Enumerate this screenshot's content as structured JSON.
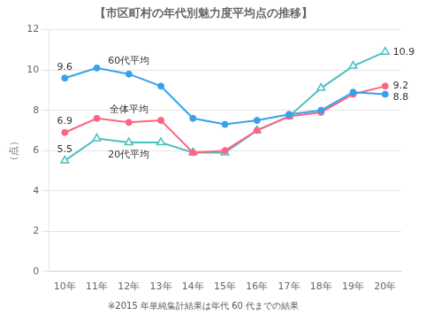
{
  "chart_data": {
    "type": "line",
    "title": "【市区町村の年代別魅力度平均点の推移】",
    "footnote": "※2015 年単純集計結果は年代 60 代までの結果",
    "ylabel": "（点）",
    "categories": [
      "10年",
      "11年",
      "12年",
      "13年",
      "14年",
      "15年",
      "16年",
      "17年",
      "18年",
      "19年",
      "20年"
    ],
    "series": [
      {
        "name": "60代平均",
        "values": [
          9.6,
          10.1,
          9.8,
          9.2,
          7.6,
          7.3,
          7.5,
          7.8,
          8.0,
          8.9,
          8.8
        ],
        "marker": "circle"
      },
      {
        "name": "全体平均",
        "values": [
          6.9,
          7.6,
          7.4,
          7.5,
          5.9,
          6.0,
          7.0,
          7.7,
          7.9,
          8.8,
          9.2
        ],
        "marker": "circle"
      },
      {
        "name": "20代平均",
        "values": [
          5.5,
          6.6,
          6.4,
          6.4,
          5.9,
          5.9,
          7.0,
          7.7,
          9.1,
          10.2,
          10.9
        ],
        "marker": "triangle"
      }
    ],
    "ylim": [
      0,
      12
    ],
    "yticks": [
      0,
      2,
      4,
      6,
      8,
      10,
      12
    ],
    "grid": true,
    "annotations": [
      {
        "text": "9.6",
        "x": "10年",
        "y": 9.6
      },
      {
        "text": "6.9",
        "x": "10年",
        "y": 6.9
      },
      {
        "text": "5.5",
        "x": "10年",
        "y": 5.5
      },
      {
        "text": "8.8",
        "x": "20年",
        "y": 8.8
      },
      {
        "text": "9.2",
        "x": "20年",
        "y": 9.2
      },
      {
        "text": "10.9",
        "x": "20年",
        "y": 10.9
      }
    ]
  }
}
